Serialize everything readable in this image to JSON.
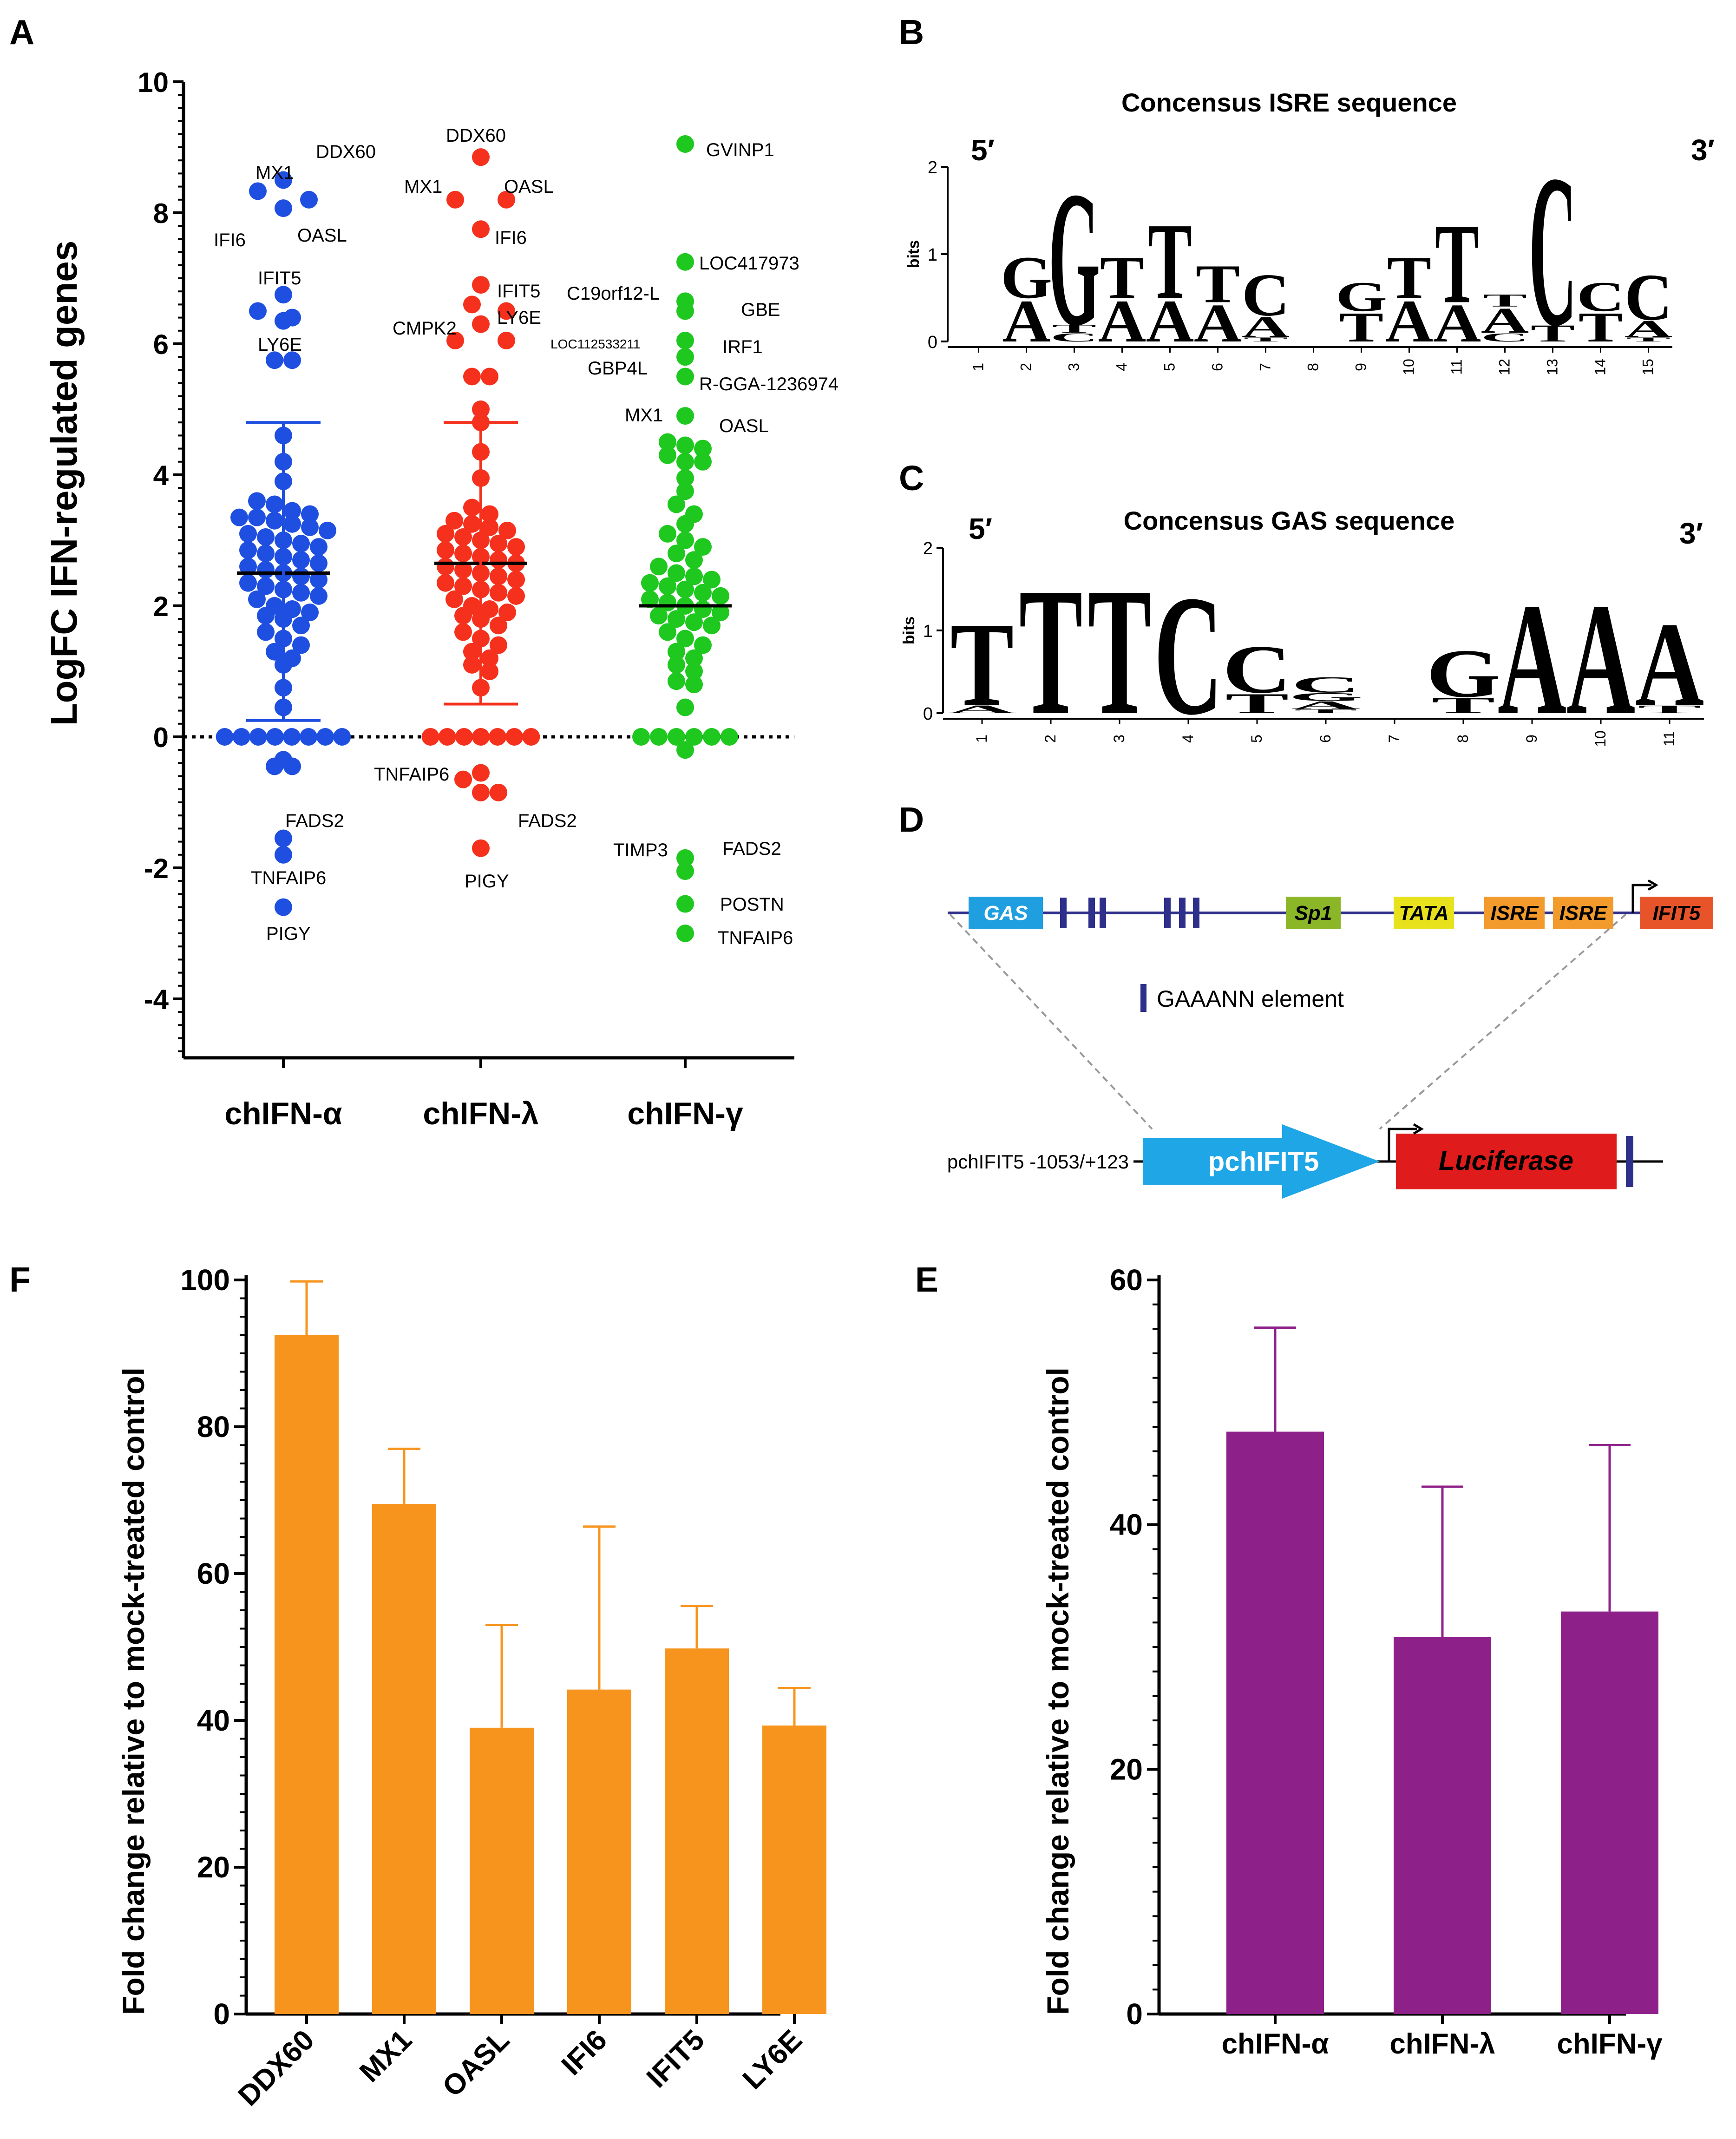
{
  "colors": {
    "alpha": "#1f4fe0",
    "lambda": "#f5301c",
    "gamma": "#1ec81e",
    "orange": "#f7941d",
    "purple": "#8e2189",
    "navy": "#2e2f8a",
    "A": "#1ec81e",
    "C": "#1a22c8",
    "G": "#f5a623",
    "T": "#cc1111"
  },
  "chart_data": [
    {
      "panel": "A",
      "type": "scatter",
      "ylabel": "LogFC IFN-regulated genes",
      "ylim": [
        -5,
        10
      ],
      "yticks": [
        "10",
        "8",
        "6",
        "4",
        "2",
        "0",
        "-2",
        "-4"
      ],
      "categories": [
        "chIFN-α",
        "chIFN-λ",
        "chIFN-γ"
      ],
      "series": [
        {
          "name": "chIFN-α",
          "mean": 2.5,
          "sd_upper": 4.8,
          "sd_lower": 0.25,
          "values": [
            8.5,
            8.33,
            8.2,
            8.07,
            6.75,
            6.5,
            6.4,
            6.35,
            5.75,
            5.75,
            4.6,
            4.2,
            3.9,
            3.6,
            3.55,
            3.45,
            3.4,
            3.35,
            3.35,
            3.3,
            3.25,
            3.2,
            3.15,
            3.1,
            3.05,
            3.0,
            2.95,
            2.9,
            2.85,
            2.8,
            2.75,
            2.7,
            2.65,
            2.6,
            2.55,
            2.5,
            2.45,
            2.4,
            2.35,
            2.3,
            2.25,
            2.2,
            2.15,
            2.1,
            2.0,
            1.95,
            1.9,
            1.85,
            1.8,
            1.7,
            1.6,
            1.5,
            1.4,
            1.3,
            1.2,
            1.1,
            0.75,
            0.45,
            0.0,
            0.0,
            0.0,
            0.0,
            0.0,
            0.0,
            0.0,
            0.0,
            -0.35,
            -0.45,
            -0.45,
            -1.55,
            -1.8,
            -2.6
          ],
          "labels": [
            {
              "text": "DDX60",
              "value": 8.5
            },
            {
              "text": "MX1",
              "value": 8.33
            },
            {
              "text": "OASL",
              "value": 8.2
            },
            {
              "text": "IFI6",
              "value": 8.07
            },
            {
              "text": "IFIT5",
              "value": 6.75
            },
            {
              "text": "LY6E",
              "value": 6.5
            },
            {
              "text": "FADS2",
              "value": -1.55
            },
            {
              "text": "TNFAIP6",
              "value": -1.8
            },
            {
              "text": "PIGY",
              "value": -2.6
            }
          ]
        },
        {
          "name": "chIFN-λ",
          "mean": 2.65,
          "sd_upper": 4.8,
          "sd_lower": 0.5,
          "values": [
            8.85,
            8.2,
            8.2,
            7.75,
            6.9,
            6.6,
            6.5,
            6.3,
            6.05,
            6.05,
            5.5,
            5.5,
            5.0,
            4.8,
            4.35,
            3.95,
            3.5,
            3.4,
            3.3,
            3.25,
            3.2,
            3.15,
            3.1,
            3.05,
            3.0,
            2.95,
            2.9,
            2.85,
            2.8,
            2.75,
            2.7,
            2.65,
            2.6,
            2.55,
            2.5,
            2.45,
            2.4,
            2.35,
            2.3,
            2.25,
            2.2,
            2.15,
            2.1,
            2.0,
            1.95,
            1.9,
            1.85,
            1.8,
            1.7,
            1.6,
            1.5,
            1.4,
            1.3,
            1.2,
            1.1,
            1.0,
            0.75,
            0.0,
            0.0,
            0.0,
            0.0,
            0.0,
            0.0,
            0.0,
            -0.55,
            -0.65,
            -0.85,
            -0.85,
            -1.7
          ],
          "labels": [
            {
              "text": "DDX60",
              "value": 8.85
            },
            {
              "text": "MX1",
              "value": 8.2
            },
            {
              "text": "OASL",
              "value": 8.2
            },
            {
              "text": "IFI6",
              "value": 7.75
            },
            {
              "text": "IFIT5",
              "value": 6.9
            },
            {
              "text": "LY6E",
              "value": 6.5
            },
            {
              "text": "CMPK2",
              "value": 6.05
            },
            {
              "text": "TNFAIP6",
              "value": -0.85
            },
            {
              "text": "FADS2",
              "value": -0.85
            },
            {
              "text": "PIGY",
              "value": -1.7
            }
          ]
        },
        {
          "name": "chIFN-γ",
          "mean": 2.0,
          "sd_upper": null,
          "sd_lower": null,
          "values": [
            9.05,
            7.25,
            6.65,
            6.5,
            6.05,
            5.8,
            5.5,
            4.9,
            4.5,
            4.45,
            4.4,
            4.3,
            4.2,
            4.2,
            3.95,
            3.75,
            3.55,
            3.4,
            3.25,
            3.1,
            3.0,
            2.9,
            2.8,
            2.7,
            2.6,
            2.5,
            2.45,
            2.4,
            2.35,
            2.3,
            2.25,
            2.2,
            2.15,
            2.1,
            2.05,
            2.0,
            1.95,
            1.9,
            1.85,
            1.8,
            1.75,
            1.7,
            1.6,
            1.5,
            1.4,
            1.3,
            1.2,
            1.1,
            1.0,
            0.85,
            0.8,
            0.45,
            0.0,
            0.0,
            0.0,
            0.0,
            0.0,
            0.0,
            -0.2,
            -1.85,
            -2.05,
            -2.55,
            -3.0
          ],
          "labels": [
            {
              "text": "GVINP1",
              "value": 9.05
            },
            {
              "text": "LOC417973",
              "value": 7.25
            },
            {
              "text": "C19orf12-L",
              "value": 6.5
            },
            {
              "text": "GBE",
              "value": 6.65
            },
            {
              "text": "LOC112533211",
              "value": 6.05
            },
            {
              "text": "IRF1",
              "value": 6.05
            },
            {
              "text": "GBP4L",
              "value": 5.8
            },
            {
              "text": "R-GGA-1236974",
              "value": 5.5
            },
            {
              "text": "MX1",
              "value": 4.9
            },
            {
              "text": "OASL",
              "value": 4.5
            },
            {
              "text": "TIMP3",
              "value": -2.05
            },
            {
              "text": "FADS2",
              "value": -1.85
            },
            {
              "text": "POSTN",
              "value": -2.55
            },
            {
              "text": "TNFAIP6",
              "value": -3.0
            }
          ]
        }
      ]
    },
    {
      "panel": "B",
      "type": "sequence-logo",
      "title": "Concensus ISRE sequence",
      "ylabel": "bits",
      "yticks": [
        "2",
        "1",
        "0"
      ],
      "positions": [
        "1",
        "2",
        "3",
        "4",
        "5",
        "6",
        "7",
        "8",
        "9",
        "10",
        "11",
        "12",
        "13",
        "14",
        "15"
      ],
      "five_prime": "5′",
      "three_prime": "3′",
      "letters": [
        {
          "pos": 2,
          "stack": [
            [
              "A",
              0.5
            ],
            [
              "G",
              0.5
            ]
          ]
        },
        {
          "pos": 3,
          "stack": [
            [
              "C",
              0.1
            ],
            [
              "T",
              0.1
            ],
            [
              "G",
              1.6
            ]
          ]
        },
        {
          "pos": 4,
          "stack": [
            [
              "A",
              0.5
            ],
            [
              "T",
              0.5
            ]
          ]
        },
        {
          "pos": 5,
          "stack": [
            [
              "A",
              0.5
            ],
            [
              "T",
              0.9
            ]
          ]
        },
        {
          "pos": 6,
          "stack": [
            [
              "A",
              0.45
            ],
            [
              "T",
              0.45
            ]
          ]
        },
        {
          "pos": 7,
          "stack": [
            [
              "T",
              0.05
            ],
            [
              "A",
              0.25
            ],
            [
              "C",
              0.5
            ]
          ]
        },
        {
          "pos": 9,
          "stack": [
            [
              "T",
              0.35
            ],
            [
              "G",
              0.35
            ]
          ]
        },
        {
          "pos": 10,
          "stack": [
            [
              "A",
              0.5
            ],
            [
              "T",
              0.5
            ]
          ]
        },
        {
          "pos": 11,
          "stack": [
            [
              "A",
              0.45
            ],
            [
              "T",
              0.95
            ]
          ]
        },
        {
          "pos": 12,
          "stack": [
            [
              "C",
              0.1
            ],
            [
              "A",
              0.3
            ],
            [
              "T",
              0.15
            ]
          ]
        },
        {
          "pos": 13,
          "stack": [
            [
              "T",
              0.2
            ],
            [
              "C",
              1.8
            ]
          ]
        },
        {
          "pos": 14,
          "stack": [
            [
              "T",
              0.35
            ],
            [
              "C",
              0.35
            ]
          ]
        },
        {
          "pos": 15,
          "stack": [
            [
              "T",
              0.05
            ],
            [
              "A",
              0.2
            ],
            [
              "C",
              0.55
            ]
          ]
        }
      ]
    },
    {
      "panel": "C",
      "type": "sequence-logo",
      "title": "Concensus GAS sequence",
      "ylabel": "bits",
      "yticks": [
        "2",
        "1",
        "0"
      ],
      "positions": [
        "1",
        "2",
        "3",
        "4",
        "5",
        "6",
        "7",
        "8",
        "9",
        "10",
        "11"
      ],
      "five_prime": "5′",
      "three_prime": "3′",
      "letters": [
        {
          "pos": 1,
          "stack": [
            [
              "A",
              0.1
            ],
            [
              "T",
              1.05
            ]
          ]
        },
        {
          "pos": 2,
          "stack": [
            [
              "T",
              1.6
            ]
          ]
        },
        {
          "pos": 3,
          "stack": [
            [
              "T",
              1.6
            ]
          ]
        },
        {
          "pos": 4,
          "stack": [
            [
              "C",
              1.5
            ]
          ]
        },
        {
          "pos": 5,
          "stack": [
            [
              "T",
              0.25
            ],
            [
              "C",
              0.6
            ]
          ]
        },
        {
          "pos": 6,
          "stack": [
            [
              "T",
              0.05
            ],
            [
              "A",
              0.1
            ],
            [
              "G",
              0.1
            ],
            [
              "C",
              0.2
            ]
          ]
        },
        {
          "pos": 8,
          "stack": [
            [
              "T",
              0.2
            ],
            [
              "G",
              0.6
            ]
          ]
        },
        {
          "pos": 9,
          "stack": [
            [
              "A",
              1.4
            ]
          ]
        },
        {
          "pos": 10,
          "stack": [
            [
              "A",
              1.4
            ]
          ]
        },
        {
          "pos": 11,
          "stack": [
            [
              "T",
              0.1
            ],
            [
              "A",
              1.05
            ]
          ]
        }
      ]
    },
    {
      "panel": "F",
      "type": "bar",
      "ylabel": "Fold change relative to mock-treated control",
      "ylim": [
        0,
        100
      ],
      "yticks": [
        "0",
        "20",
        "40",
        "60",
        "80",
        "100"
      ],
      "categories": [
        "DDX60",
        "MX1",
        "OASL",
        "IFI6",
        "IFIT5",
        "LY6E"
      ],
      "values": [
        92.5,
        69.5,
        39.0,
        44.2,
        49.8,
        39.3
      ],
      "error_upper": [
        99.8,
        77.0,
        53.0,
        66.4,
        55.6,
        44.4
      ]
    },
    {
      "panel": "E",
      "type": "bar",
      "ylabel": "Fold change relative to mock-treated control",
      "ylim": [
        0,
        60
      ],
      "yticks": [
        "0",
        "20",
        "40",
        "60"
      ],
      "categories": [
        "chIFN-α",
        "chIFN-λ",
        "chIFN-γ"
      ],
      "values": [
        47.6,
        30.8,
        32.9
      ],
      "error_upper": [
        56.1,
        43.1,
        46.5
      ]
    }
  ],
  "panels": {
    "A": "A",
    "B": "B",
    "C": "C",
    "D": "D",
    "F": "F",
    "E": "E"
  },
  "diagramD": {
    "elements": [
      "GAS",
      "Sp1",
      "TATA",
      "ISRE",
      "ISRE",
      "IFIT5"
    ],
    "legend": "GAAANN element",
    "construct_label": "pchIFIT5 -1053/+123",
    "promoter": "pchIFIT5",
    "reporter": "Luciferase"
  }
}
